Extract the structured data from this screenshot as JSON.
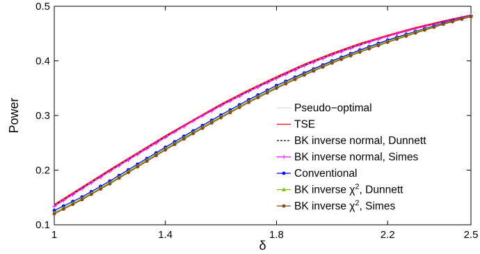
{
  "chart_data": {
    "type": "line",
    "xlabel": "δ",
    "ylabel": "Power",
    "xlim": [
      1,
      2.5
    ],
    "ylim": [
      0.1,
      0.5
    ],
    "xticks": [
      "1",
      "1.4",
      "1.8",
      "2.2",
      "2.5"
    ],
    "xtick_values": [
      1,
      1.4,
      1.8,
      2.2,
      2.5
    ],
    "yticks": [
      "0.1",
      "0.2",
      "0.3",
      "0.4",
      "0.5"
    ],
    "ytick_values": [
      0.1,
      0.2,
      0.3,
      0.4,
      0.5
    ],
    "grid": false,
    "legend_position": "right",
    "x": [
      1.0,
      1.1,
      1.2,
      1.3,
      1.4,
      1.5,
      1.6,
      1.7,
      1.8,
      1.9,
      2.0,
      2.1,
      2.2,
      2.3,
      2.4,
      2.5
    ],
    "series": [
      {
        "name": "Pseudo−optimal",
        "label_main": "Pseudo−optimal",
        "label_sup": "",
        "label_tail": "",
        "color": "#d9d9d9",
        "style": "solid",
        "marker": "none",
        "values": [
          0.136,
          0.168,
          0.2,
          0.231,
          0.262,
          0.291,
          0.32,
          0.346,
          0.37,
          0.393,
          0.413,
          0.431,
          0.446,
          0.46,
          0.472,
          0.483
        ]
      },
      {
        "name": "TSE",
        "label_main": "TSE",
        "label_sup": "",
        "label_tail": "",
        "color": "#ff0000",
        "style": "solid",
        "marker": "none",
        "values": [
          0.137,
          0.169,
          0.201,
          0.232,
          0.263,
          0.292,
          0.321,
          0.347,
          0.371,
          0.394,
          0.414,
          0.432,
          0.447,
          0.461,
          0.473,
          0.484
        ]
      },
      {
        "name": "BK inverse normal, Dunnett",
        "label_main": "BK inverse normal, Dunnett",
        "label_sup": "",
        "label_tail": "",
        "color": "#000000",
        "style": "dashed",
        "marker": "none",
        "values": [
          0.135,
          0.167,
          0.199,
          0.23,
          0.261,
          0.29,
          0.319,
          0.345,
          0.369,
          0.392,
          0.412,
          0.43,
          0.445,
          0.459,
          0.472,
          0.483
        ]
      },
      {
        "name": "BK inverse normal, Simes",
        "label_main": "BK inverse normal, Simes",
        "label_sup": "",
        "label_tail": "",
        "color": "#ff00ff",
        "style": "solid",
        "marker": "plus",
        "values": [
          0.134,
          0.166,
          0.198,
          0.229,
          0.26,
          0.29,
          0.318,
          0.344,
          0.368,
          0.391,
          0.411,
          0.429,
          0.445,
          0.459,
          0.471,
          0.483
        ]
      },
      {
        "name": "Conventional",
        "label_main": "Conventional",
        "label_sup": "",
        "label_tail": "",
        "color": "#0000ff",
        "style": "solid",
        "marker": "dot",
        "values": [
          0.126,
          0.151,
          0.18,
          0.211,
          0.242,
          0.272,
          0.301,
          0.329,
          0.355,
          0.378,
          0.4,
          0.42,
          0.438,
          0.454,
          0.469,
          0.482
        ]
      },
      {
        "name": "BK inverse χ2, Dunnett",
        "label_main": "BK inverse χ",
        "label_sup": "2",
        "label_tail": ", Dunnett",
        "color": "#7fbf00",
        "style": "solid",
        "marker": "triangle",
        "values": [
          0.122,
          0.148,
          0.177,
          0.208,
          0.239,
          0.269,
          0.298,
          0.326,
          0.352,
          0.376,
          0.398,
          0.418,
          0.436,
          0.453,
          0.468,
          0.482
        ]
      },
      {
        "name": "BK inverse χ2, Simes",
        "label_main": "BK inverse χ",
        "label_sup": "2",
        "label_tail": ", Simes",
        "color": "#8b4513",
        "style": "solid",
        "marker": "dot",
        "values": [
          0.12,
          0.146,
          0.175,
          0.206,
          0.237,
          0.267,
          0.296,
          0.324,
          0.35,
          0.374,
          0.396,
          0.416,
          0.434,
          0.451,
          0.467,
          0.481
        ]
      }
    ]
  }
}
